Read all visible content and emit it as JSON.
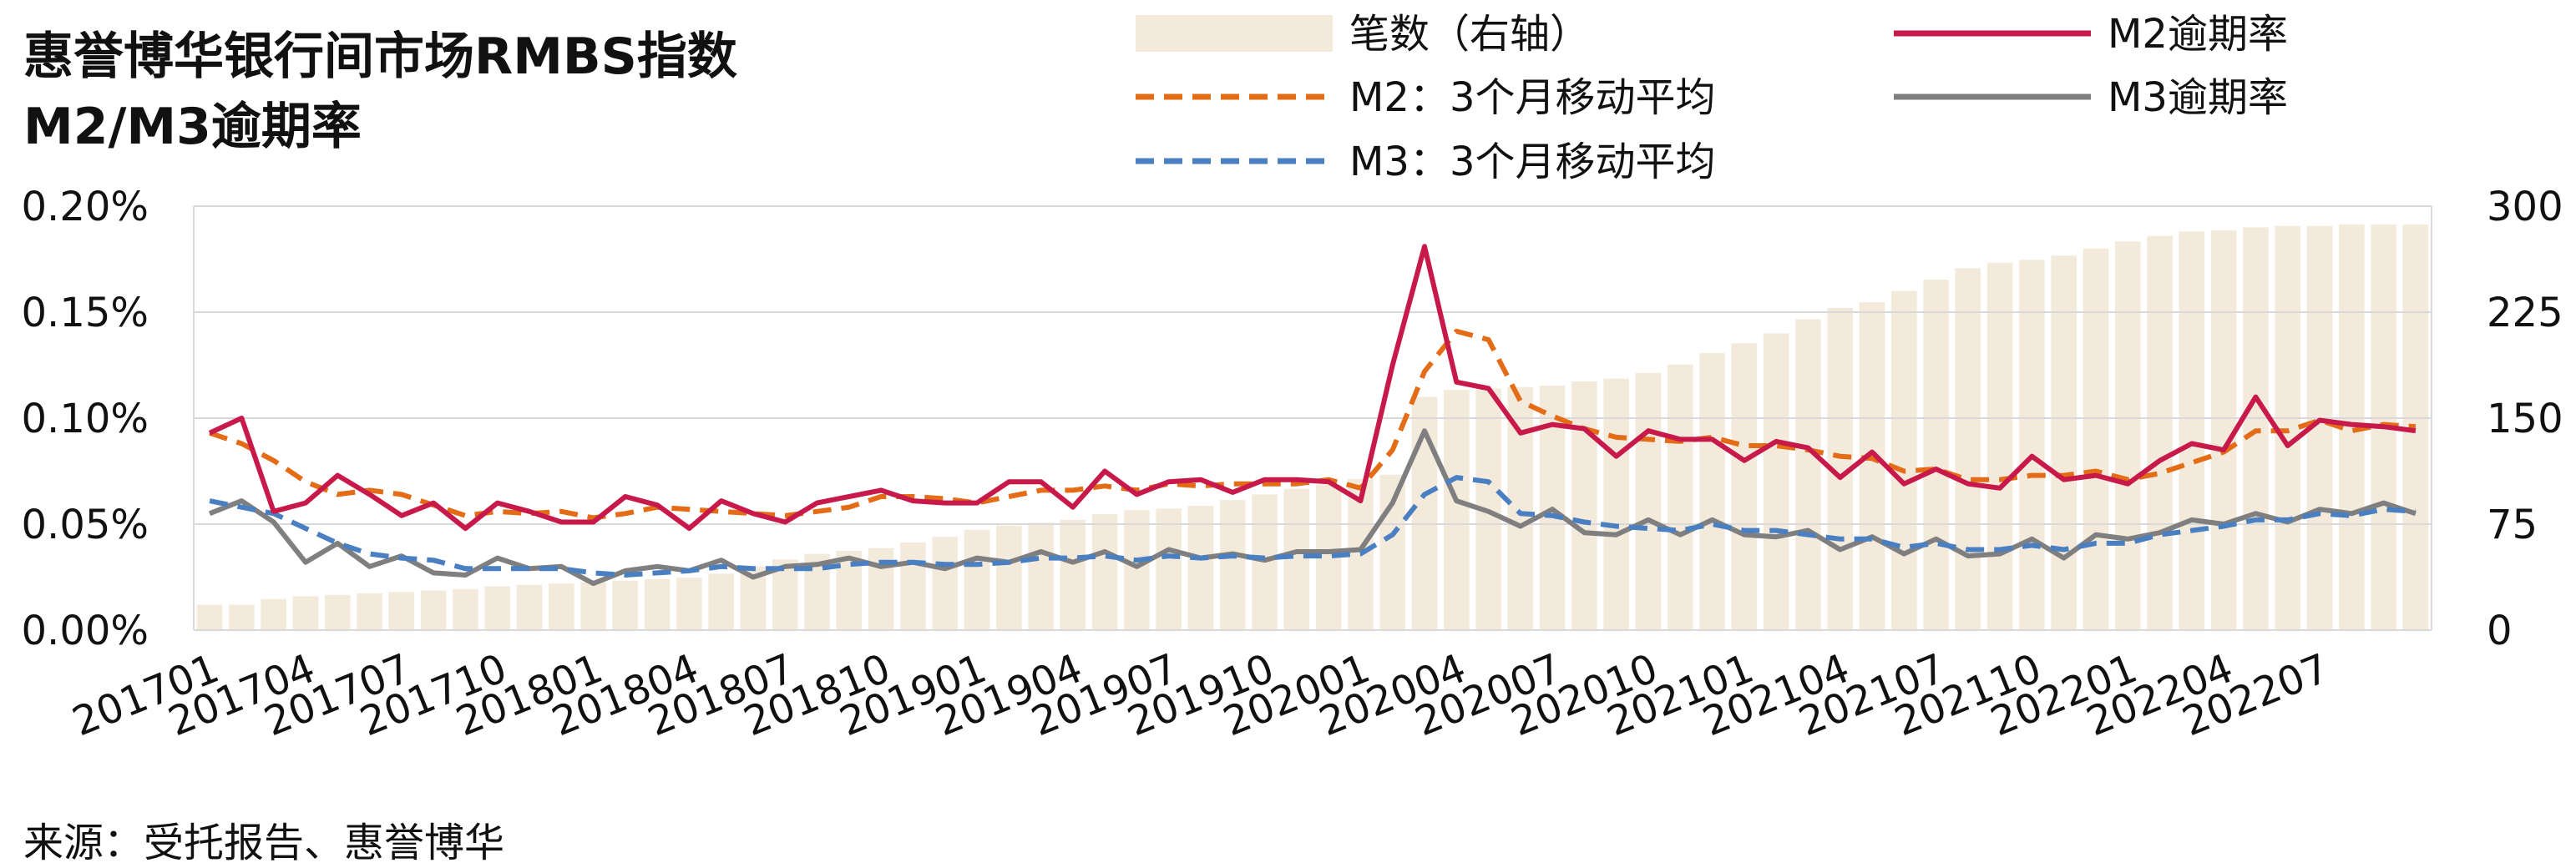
{
  "title_line1": "惠誉博华银行间市场RMBS指数",
  "title_line2": "M2/M3逾期率",
  "source": "来源：受托报告、惠誉博华",
  "colors": {
    "bars": "#f3eadb",
    "m2": "#c8194b",
    "m2_ma": "#e46c17",
    "m3": "#7f7f7f",
    "m3_ma": "#4a7fc1",
    "grid": "#d9d9d9"
  },
  "chart_data": {
    "type": "bar+line",
    "x_tick_labels": [
      "201701",
      "201704",
      "201707",
      "201710",
      "201801",
      "201804",
      "201807",
      "201810",
      "201901",
      "201904",
      "201907",
      "201910",
      "202001",
      "202004",
      "202007",
      "202010",
      "202101",
      "202104",
      "202107",
      "202110",
      "202201",
      "202204",
      "202207"
    ],
    "y_left": {
      "ticks": [
        "0.00%",
        "0.05%",
        "0.10%",
        "0.15%",
        "0.20%"
      ],
      "range": [
        0,
        0.2
      ]
    },
    "y_right": {
      "ticks": [
        "0",
        "75",
        "150",
        "225",
        "300"
      ],
      "range": [
        0,
        300
      ]
    },
    "legend_position": "top",
    "legend": [
      "笔数（右轴）",
      "M2逾期率",
      "M2：3个月移动平均",
      "M3逾期率",
      "M3：3个月移动平均"
    ],
    "series": [
      {
        "name": "笔数（右轴）",
        "type": "bar",
        "axis": "right",
        "values": [
          18,
          18,
          22,
          24,
          25,
          26,
          27,
          28,
          29,
          31,
          32,
          33,
          34,
          35,
          36,
          37,
          40,
          45,
          50,
          54,
          56,
          58,
          62,
          66,
          71,
          74,
          76,
          78,
          82,
          85,
          86,
          88,
          92,
          96,
          100,
          103,
          107,
          110,
          165,
          170,
          171,
          172,
          173,
          176,
          178,
          182,
          188,
          196,
          203,
          210,
          220,
          228,
          232,
          240,
          248,
          256,
          260,
          262,
          265,
          270,
          275,
          279,
          282,
          283,
          285,
          286,
          286,
          287,
          287,
          287
        ]
      },
      {
        "name": "M2逾期率",
        "type": "line",
        "axis": "left",
        "values": [
          0.093,
          0.1,
          0.056,
          0.06,
          0.073,
          0.064,
          0.054,
          0.06,
          0.048,
          0.06,
          0.056,
          0.051,
          0.051,
          0.063,
          0.059,
          0.048,
          0.061,
          0.055,
          0.051,
          0.06,
          0.063,
          0.066,
          0.061,
          0.06,
          0.06,
          0.07,
          0.07,
          0.058,
          0.075,
          0.064,
          0.07,
          0.071,
          0.065,
          0.071,
          0.071,
          0.07,
          0.061,
          0.125,
          0.181,
          0.117,
          0.114,
          0.093,
          0.097,
          0.095,
          0.082,
          0.094,
          0.09,
          0.09,
          0.08,
          0.089,
          0.086,
          0.072,
          0.084,
          0.069,
          0.076,
          0.069,
          0.067,
          0.082,
          0.071,
          0.073,
          0.069,
          0.08,
          0.088,
          0.085,
          0.11,
          0.087,
          0.099,
          0.097,
          0.096,
          0.094
        ]
      },
      {
        "name": "M2：3个月移动平均",
        "type": "line",
        "axis": "left",
        "values": [
          0.093,
          0.088,
          0.08,
          0.07,
          0.064,
          0.066,
          0.064,
          0.059,
          0.054,
          0.056,
          0.055,
          0.056,
          0.053,
          0.055,
          0.058,
          0.057,
          0.056,
          0.055,
          0.054,
          0.056,
          0.058,
          0.063,
          0.063,
          0.062,
          0.06,
          0.063,
          0.066,
          0.066,
          0.068,
          0.066,
          0.069,
          0.068,
          0.069,
          0.069,
          0.069,
          0.071,
          0.067,
          0.085,
          0.122,
          0.141,
          0.137,
          0.108,
          0.101,
          0.095,
          0.091,
          0.09,
          0.089,
          0.091,
          0.087,
          0.087,
          0.085,
          0.082,
          0.081,
          0.075,
          0.076,
          0.071,
          0.071,
          0.073,
          0.073,
          0.075,
          0.071,
          0.074,
          0.079,
          0.084,
          0.094,
          0.094,
          0.099,
          0.094,
          0.097,
          0.096
        ]
      },
      {
        "name": "M3逾期率",
        "type": "line",
        "axis": "left",
        "values": [
          0.055,
          0.061,
          0.051,
          0.032,
          0.041,
          0.03,
          0.035,
          0.027,
          0.026,
          0.034,
          0.029,
          0.03,
          0.022,
          0.028,
          0.03,
          0.028,
          0.033,
          0.025,
          0.03,
          0.031,
          0.034,
          0.03,
          0.032,
          0.029,
          0.034,
          0.032,
          0.037,
          0.032,
          0.037,
          0.03,
          0.038,
          0.034,
          0.036,
          0.033,
          0.037,
          0.037,
          0.038,
          0.06,
          0.094,
          0.061,
          0.056,
          0.049,
          0.057,
          0.046,
          0.045,
          0.052,
          0.045,
          0.052,
          0.045,
          0.044,
          0.047,
          0.038,
          0.044,
          0.036,
          0.043,
          0.035,
          0.036,
          0.043,
          0.034,
          0.045,
          0.043,
          0.046,
          0.052,
          0.05,
          0.055,
          0.051,
          0.057,
          0.055,
          0.06,
          0.055
        ]
      },
      {
        "name": "M3：3个月移动平均",
        "type": "line",
        "axis": "left",
        "values": [
          0.061,
          0.058,
          0.055,
          0.048,
          0.041,
          0.036,
          0.034,
          0.033,
          0.029,
          0.029,
          0.029,
          0.029,
          0.027,
          0.026,
          0.027,
          0.028,
          0.03,
          0.029,
          0.029,
          0.029,
          0.031,
          0.032,
          0.032,
          0.031,
          0.031,
          0.032,
          0.034,
          0.034,
          0.035,
          0.033,
          0.035,
          0.034,
          0.035,
          0.034,
          0.035,
          0.035,
          0.036,
          0.045,
          0.064,
          0.072,
          0.07,
          0.055,
          0.054,
          0.051,
          0.049,
          0.048,
          0.047,
          0.05,
          0.047,
          0.047,
          0.045,
          0.043,
          0.043,
          0.039,
          0.041,
          0.038,
          0.038,
          0.04,
          0.038,
          0.041,
          0.041,
          0.045,
          0.047,
          0.049,
          0.052,
          0.052,
          0.055,
          0.054,
          0.057,
          0.056
        ]
      }
    ]
  }
}
